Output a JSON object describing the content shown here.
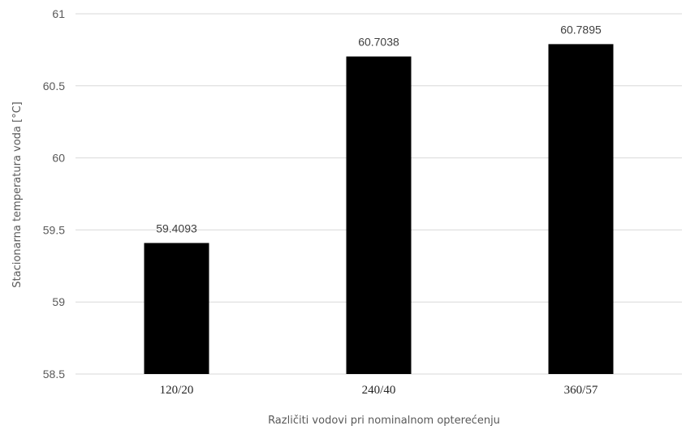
{
  "chart_data": {
    "type": "bar",
    "title": "",
    "xlabel": "Različiti vodovi pri nominalnom opterećenju",
    "ylabel": "Stacionarna temperatura voda [°C]",
    "categories": [
      "120/20",
      "240/40",
      "360/57"
    ],
    "values": [
      59.4093,
      60.7038,
      60.7895
    ],
    "value_labels": [
      "59.4093",
      "60.7038",
      "60.7895"
    ],
    "ylim": [
      58.5,
      61
    ],
    "yticks": [
      58.5,
      59,
      59.5,
      60,
      60.5,
      61
    ],
    "ytick_labels": [
      "58.5",
      "59",
      "59.5",
      "60",
      "60.5",
      "61"
    ],
    "grid": true,
    "legend": "none",
    "bar_color": "#000000"
  }
}
